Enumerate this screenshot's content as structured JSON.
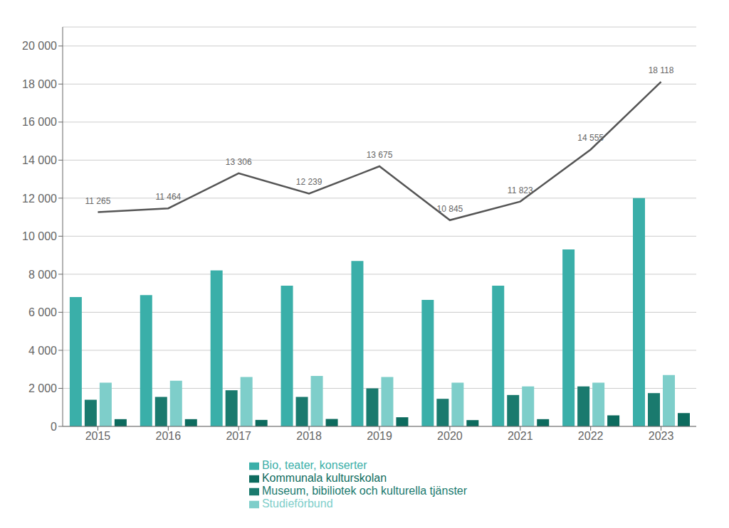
{
  "chart_data": {
    "type": "bar",
    "categories": [
      "2015",
      "2016",
      "2017",
      "2018",
      "2019",
      "2020",
      "2021",
      "2022",
      "2023"
    ],
    "series": [
      {
        "name": "Bio, teater, konserter",
        "color": "#3AAFA9",
        "values": [
          6800,
          6900,
          8200,
          7400,
          8700,
          6650,
          7400,
          9300,
          12000
        ]
      },
      {
        "name": "Museum, bibiliotek och kulturella tjänster",
        "color": "#1A7A6E",
        "values": [
          1400,
          1550,
          1900,
          1550,
          2000,
          1450,
          1650,
          2100,
          1750
        ]
      },
      {
        "name": "Studieförbund",
        "color": "#7ECECA",
        "values": [
          2300,
          2400,
          2600,
          2650,
          2600,
          2300,
          2100,
          2300,
          2700
        ]
      },
      {
        "name": "Kommunala kulturskolan",
        "color": "#0D6B5E",
        "values": [
          380,
          380,
          340,
          390,
          480,
          330,
          380,
          580,
          700
        ]
      },
      {
        "type": "line",
        "color": "#555555",
        "data_labels": true,
        "values": [
          11265,
          11464,
          13306,
          12239,
          13675,
          10845,
          11823,
          14555,
          18118
        ],
        "value_labels": [
          "11 265",
          "11 464",
          "13 306",
          "12 239",
          "13 675",
          "10 845",
          "11 823",
          "14 555",
          "18 118"
        ]
      }
    ],
    "ylim": [
      0,
      21000
    ],
    "yticks": [
      0,
      {
        "value": 2000,
        "label": "2 000"
      },
      {
        "value": 4000,
        "label": "4 000"
      },
      {
        "value": 6000,
        "label": "6 000"
      },
      {
        "value": 8000,
        "label": "8 000"
      },
      {
        "value": 10000,
        "label": "10 000"
      },
      {
        "value": 12000,
        "label": "12 000"
      },
      {
        "value": 14000,
        "label": "14 000"
      },
      {
        "value": 16000,
        "label": "16 000"
      },
      {
        "value": 18000,
        "label": "18 000"
      },
      {
        "value": 20000,
        "label": "20 000"
      }
    ],
    "grid": true,
    "legend": "bottom"
  }
}
